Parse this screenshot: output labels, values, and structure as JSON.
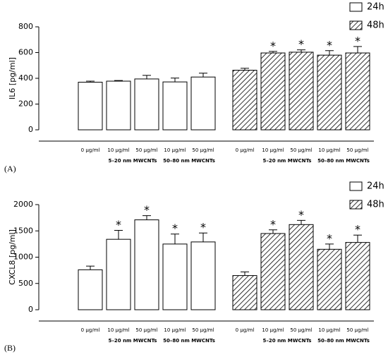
{
  "chart_data": [
    {
      "type": "bar",
      "panel_label": "(A)",
      "ylabel": "IL6 [pg/ml]",
      "categories": [
        "0 μg/ml",
        "10 μg/ml",
        "50 μg/ml",
        "10 μg/ml",
        "50 μg/ml"
      ],
      "groups": [
        "5–20 nm MWCNTs",
        "50–80 nm MWCNTs"
      ],
      "ylim": [
        0,
        800
      ],
      "yticks": [
        0,
        200,
        400,
        600,
        800
      ],
      "series": [
        {
          "name": "24h",
          "color": "#ffffff",
          "pattern": "none",
          "values": [
            370,
            378,
            395,
            372,
            410
          ],
          "errors": [
            8,
            5,
            28,
            30,
            30
          ],
          "annotations": [
            null,
            null,
            null,
            null,
            null
          ]
        },
        {
          "name": "48h",
          "color": "#ffffff",
          "pattern": "hatch",
          "values": [
            463,
            597,
            603,
            580,
            597
          ],
          "errors": [
            15,
            12,
            18,
            35,
            50
          ],
          "annotations": [
            null,
            "*",
            "*",
            "*",
            "*"
          ]
        }
      ]
    },
    {
      "type": "bar",
      "panel_label": "(B)",
      "ylabel": "CXCL8 [pg/ml]",
      "categories": [
        "0 μg/ml",
        "10 μg/ml",
        "50 μg/ml",
        "10 μg/ml",
        "50 μg/ml"
      ],
      "groups": [
        "5–20 nm MWCNTs",
        "50–80 nm MWCNTs"
      ],
      "ylim": [
        0,
        2000
      ],
      "yticks": [
        0,
        500,
        1000,
        1500,
        2000
      ],
      "series": [
        {
          "name": "24h",
          "color": "#ffffff",
          "pattern": "none",
          "values": [
            760,
            1340,
            1710,
            1250,
            1290
          ],
          "errors": [
            70,
            170,
            80,
            190,
            170
          ],
          "annotations": [
            null,
            "*",
            "*",
            "*",
            "*"
          ]
        },
        {
          "name": "48h",
          "color": "#ffffff",
          "pattern": "hatch",
          "values": [
            650,
            1450,
            1620,
            1150,
            1280
          ],
          "errors": [
            70,
            70,
            80,
            100,
            140
          ],
          "annotations": [
            null,
            "*",
            "*",
            "*",
            "*"
          ]
        }
      ]
    }
  ]
}
